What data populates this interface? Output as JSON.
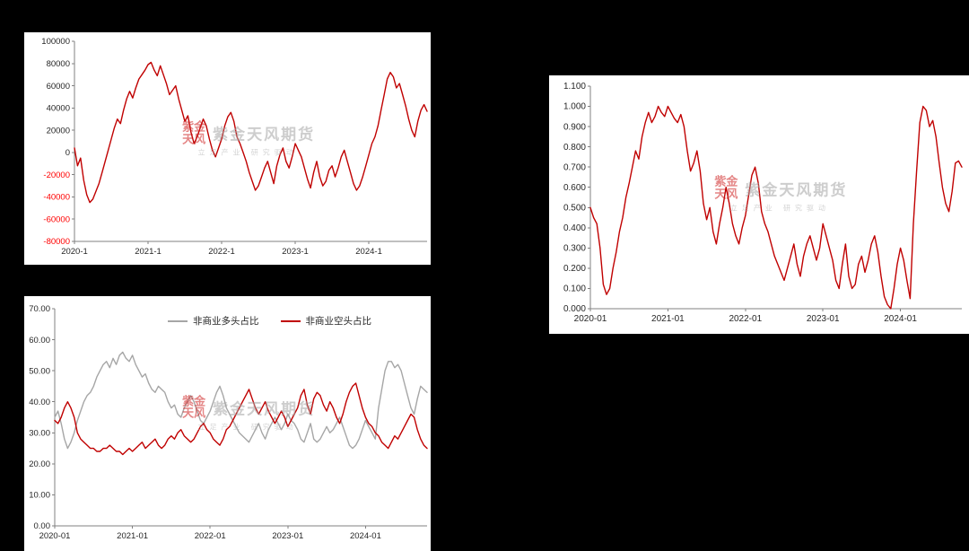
{
  "page": {
    "background": "#000000"
  },
  "watermark": {
    "brand": "紫金天风期货",
    "tagline": "立足产业 研究驱动",
    "seal_chars": "紫金天风",
    "brand_color": "#a6a6a6",
    "seal_color": "#cf2222"
  },
  "colors": {
    "series_red": "#C00000",
    "series_gray": "#A6A6A6",
    "negative_tick_red": "#FF0000",
    "axis": "#808080",
    "label": "#262626",
    "panel_bg": "#FFFFFF",
    "page_bg": "#000000"
  },
  "chart_data": [
    {
      "id": "net-position",
      "type": "line",
      "title": "",
      "xlabel": "",
      "ylabel": "",
      "grid": false,
      "legend": "none",
      "ylim": [
        -80000,
        100000
      ],
      "font_size": 9.5,
      "label_color": "#262626",
      "axis_color": "#808080",
      "margins": {
        "l": 56,
        "r": 4,
        "t": 10,
        "b": 26
      },
      "yticks": [
        {
          "value": 100000,
          "label": "100000"
        },
        {
          "value": 80000,
          "label": "80000"
        },
        {
          "value": 60000,
          "label": "60000"
        },
        {
          "value": 40000,
          "label": "40000"
        },
        {
          "value": 20000,
          "label": "20000"
        },
        {
          "value": 0,
          "label": "0"
        },
        {
          "value": -20000,
          "label": "-20000",
          "color": "#FF0000"
        },
        {
          "value": -40000,
          "label": "-40000",
          "color": "#FF0000"
        },
        {
          "value": -60000,
          "label": "-60000",
          "color": "#FF0000"
        },
        {
          "value": -80000,
          "label": "-80000",
          "color": "#FF0000"
        }
      ],
      "xticks": [
        {
          "index": 0,
          "label": "2020-1"
        },
        {
          "index": 24,
          "label": "2021-1"
        },
        {
          "index": 48,
          "label": "2022-1"
        },
        {
          "index": 72,
          "label": "2023-1"
        },
        {
          "index": 96,
          "label": "2024-1"
        }
      ],
      "x_start": "2020-01",
      "points_per_month": 2,
      "series": [
        {
          "name": "",
          "color": "#C00000",
          "width": 1.4,
          "values": [
            4000,
            -12000,
            -5000,
            -25000,
            -38000,
            -45000,
            -42000,
            -35000,
            -28000,
            -18000,
            -8000,
            2000,
            12000,
            22000,
            30000,
            26000,
            38000,
            48000,
            55000,
            49000,
            58000,
            66000,
            70000,
            74000,
            79000,
            81000,
            74000,
            69000,
            78000,
            70000,
            62000,
            52000,
            56000,
            60000,
            48000,
            38000,
            28000,
            33000,
            18000,
            8000,
            14000,
            22000,
            30000,
            24000,
            12000,
            2000,
            -4000,
            4000,
            12000,
            24000,
            32000,
            36000,
            28000,
            14000,
            8000,
            0,
            -8000,
            -18000,
            -26000,
            -34000,
            -30000,
            -22000,
            -14000,
            -8000,
            -18000,
            -28000,
            -12000,
            -2000,
            4000,
            -8000,
            -14000,
            -4000,
            8000,
            2000,
            -4000,
            -14000,
            -24000,
            -32000,
            -18000,
            -8000,
            -22000,
            -30000,
            -26000,
            -16000,
            -12000,
            -22000,
            -14000,
            -4000,
            2000,
            -8000,
            -18000,
            -28000,
            -34000,
            -30000,
            -22000,
            -12000,
            -2000,
            8000,
            14000,
            24000,
            38000,
            52000,
            66000,
            72000,
            68000,
            58000,
            62000,
            52000,
            42000,
            30000,
            20000,
            14000,
            28000,
            38000,
            43000,
            37000
          ]
        }
      ]
    },
    {
      "id": "ratio-index",
      "type": "line",
      "title": "",
      "xlabel": "",
      "ylabel": "",
      "grid": false,
      "legend": "none",
      "ylim": [
        0,
        1.1
      ],
      "font_size": 10,
      "label_color": "#262626",
      "axis_color": "#808080",
      "margins": {
        "l": 46,
        "r": 8,
        "t": 12,
        "b": 28
      },
      "yticks": [
        {
          "value": 1.1,
          "label": "1.100"
        },
        {
          "value": 1.0,
          "label": "1.000"
        },
        {
          "value": 0.9,
          "label": "0.900"
        },
        {
          "value": 0.8,
          "label": "0.800"
        },
        {
          "value": 0.7,
          "label": "0.700"
        },
        {
          "value": 0.6,
          "label": "0.600"
        },
        {
          "value": 0.5,
          "label": "0.500"
        },
        {
          "value": 0.4,
          "label": "0.400"
        },
        {
          "value": 0.3,
          "label": "0.300"
        },
        {
          "value": 0.2,
          "label": "0.200"
        },
        {
          "value": 0.1,
          "label": "0.100"
        },
        {
          "value": 0.0,
          "label": "0.000"
        }
      ],
      "xticks": [
        {
          "index": 0,
          "label": "2020-01"
        },
        {
          "index": 24,
          "label": "2021-01"
        },
        {
          "index": 48,
          "label": "2022-01"
        },
        {
          "index": 72,
          "label": "2023-01"
        },
        {
          "index": 96,
          "label": "2024-01"
        }
      ],
      "x_start": "2020-01",
      "points_per_month": 2,
      "series": [
        {
          "name": "",
          "color": "#C00000",
          "width": 1.4,
          "values": [
            0.5,
            0.45,
            0.42,
            0.3,
            0.12,
            0.07,
            0.1,
            0.2,
            0.28,
            0.38,
            0.45,
            0.55,
            0.62,
            0.7,
            0.78,
            0.74,
            0.85,
            0.92,
            0.97,
            0.92,
            0.95,
            1.0,
            0.97,
            0.95,
            1.0,
            0.97,
            0.94,
            0.92,
            0.96,
            0.9,
            0.78,
            0.68,
            0.72,
            0.78,
            0.68,
            0.52,
            0.44,
            0.5,
            0.38,
            0.32,
            0.42,
            0.5,
            0.6,
            0.52,
            0.42,
            0.36,
            0.32,
            0.4,
            0.46,
            0.56,
            0.66,
            0.7,
            0.62,
            0.48,
            0.42,
            0.38,
            0.32,
            0.26,
            0.22,
            0.18,
            0.14,
            0.2,
            0.26,
            0.32,
            0.22,
            0.16,
            0.26,
            0.32,
            0.36,
            0.3,
            0.24,
            0.3,
            0.42,
            0.36,
            0.3,
            0.24,
            0.14,
            0.1,
            0.22,
            0.32,
            0.16,
            0.1,
            0.12,
            0.22,
            0.26,
            0.18,
            0.24,
            0.32,
            0.36,
            0.28,
            0.16,
            0.06,
            0.02,
            0.0,
            0.1,
            0.22,
            0.3,
            0.24,
            0.14,
            0.05,
            0.42,
            0.68,
            0.92,
            1.0,
            0.98,
            0.9,
            0.93,
            0.85,
            0.72,
            0.6,
            0.52,
            0.48,
            0.58,
            0.72,
            0.73,
            0.7
          ]
        }
      ]
    },
    {
      "id": "noncommercial-ratios",
      "type": "line",
      "title": "",
      "xlabel": "",
      "ylabel": "",
      "grid": false,
      "legend": "top",
      "ylim": [
        0,
        70
      ],
      "font_size": 9.5,
      "label_color": "#262626",
      "axis_color": "#808080",
      "margins": {
        "l": 34,
        "r": 4,
        "t": 14,
        "b": 28
      },
      "yticks": [
        {
          "value": 70,
          "label": "70.00"
        },
        {
          "value": 60,
          "label": "60.00"
        },
        {
          "value": 50,
          "label": "50.00"
        },
        {
          "value": 40,
          "label": "40.00"
        },
        {
          "value": 30,
          "label": "30.00"
        },
        {
          "value": 20,
          "label": "20.00"
        },
        {
          "value": 10,
          "label": "10.00"
        },
        {
          "value": 0,
          "label": "0.00"
        }
      ],
      "xticks": [
        {
          "index": 0,
          "label": "2020-01"
        },
        {
          "index": 24,
          "label": "2021-01"
        },
        {
          "index": 48,
          "label": "2022-01"
        },
        {
          "index": 72,
          "label": "2023-01"
        },
        {
          "index": 96,
          "label": "2024-01"
        }
      ],
      "x_start": "2020-01",
      "points_per_month": 2,
      "series": [
        {
          "name": "非商业多头占比",
          "color": "#A6A6A6",
          "width": 1.4,
          "values": [
            35,
            37,
            33,
            28,
            25,
            27,
            30,
            34,
            37,
            40,
            42,
            43,
            45,
            48,
            50,
            52,
            53,
            51,
            54,
            52,
            55,
            56,
            54,
            53,
            55,
            52,
            50,
            48,
            49,
            46,
            44,
            43,
            45,
            44,
            43,
            40,
            38,
            39,
            36,
            35,
            38,
            40,
            42,
            40,
            37,
            34,
            33,
            35,
            37,
            40,
            43,
            45,
            42,
            38,
            36,
            34,
            32,
            30,
            29,
            28,
            27,
            29,
            31,
            33,
            30,
            28,
            31,
            33,
            35,
            33,
            31,
            33,
            36,
            34,
            33,
            31,
            28,
            27,
            30,
            33,
            28,
            27,
            28,
            30,
            32,
            30,
            31,
            33,
            35,
            32,
            29,
            26,
            25,
            26,
            28,
            31,
            34,
            32,
            30,
            28,
            38,
            44,
            50,
            53,
            53,
            51,
            52,
            50,
            46,
            42,
            38,
            36,
            41,
            45,
            44,
            43
          ]
        },
        {
          "name": "非商业空头占比",
          "color": "#C00000",
          "width": 1.4,
          "values": [
            34,
            33,
            35,
            38,
            40,
            38,
            35,
            30,
            28,
            27,
            26,
            25,
            25,
            24,
            24,
            25,
            25,
            26,
            25,
            24,
            24,
            23,
            24,
            25,
            24,
            25,
            26,
            27,
            25,
            26,
            27,
            28,
            26,
            25,
            26,
            28,
            29,
            28,
            30,
            31,
            29,
            28,
            27,
            28,
            30,
            32,
            33,
            31,
            30,
            28,
            27,
            26,
            28,
            31,
            32,
            34,
            36,
            38,
            40,
            42,
            44,
            41,
            38,
            36,
            38,
            40,
            37,
            35,
            33,
            35,
            37,
            35,
            32,
            34,
            36,
            38,
            42,
            44,
            39,
            36,
            41,
            43,
            42,
            39,
            37,
            40,
            38,
            35,
            33,
            36,
            40,
            43,
            45,
            46,
            42,
            38,
            35,
            33,
            32,
            30,
            29,
            27,
            26,
            25,
            27,
            29,
            28,
            30,
            32,
            34,
            36,
            35,
            31,
            28,
            26,
            25
          ]
        }
      ]
    }
  ]
}
